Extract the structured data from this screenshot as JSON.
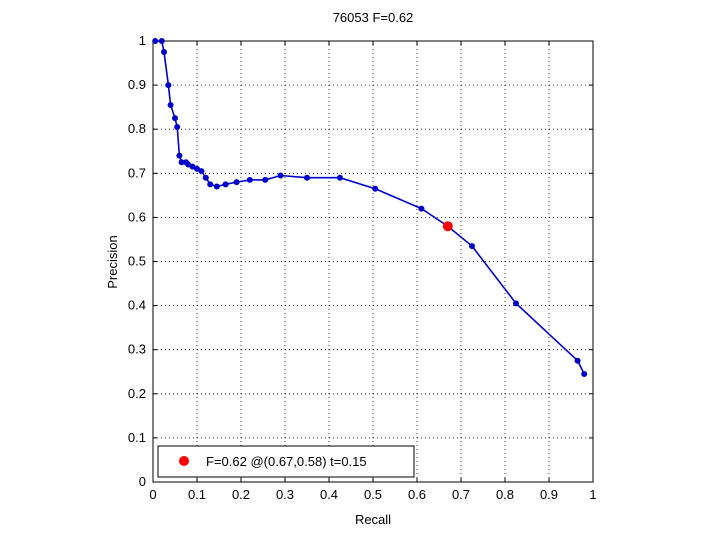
{
  "chart_data": {
    "type": "line",
    "title": "76053 F=0.62",
    "xlabel": "Recall",
    "ylabel": "Precision",
    "xlim": [
      0,
      1
    ],
    "ylim": [
      0,
      1
    ],
    "xticks": [
      "0",
      "0.1",
      "0.2",
      "0.3",
      "0.4",
      "0.5",
      "0.6",
      "0.7",
      "0.8",
      "0.9",
      "1"
    ],
    "yticks": [
      "0",
      "0.1",
      "0.2",
      "0.3",
      "0.4",
      "0.5",
      "0.6",
      "0.7",
      "0.8",
      "0.9",
      "1"
    ],
    "grid": true,
    "legend_position": "bottom-left",
    "series": [
      {
        "color": "#0000cc",
        "x": [
          0.005,
          0.02,
          0.025,
          0.035,
          0.04,
          0.05,
          0.055,
          0.06,
          0.065,
          0.075,
          0.08,
          0.09,
          0.1,
          0.11,
          0.12,
          0.13,
          0.145,
          0.165,
          0.19,
          0.22,
          0.255,
          0.29,
          0.35,
          0.425,
          0.505,
          0.61,
          0.67,
          0.725,
          0.825,
          0.965,
          0.98
        ],
        "y": [
          1.0,
          1.0,
          0.975,
          0.9,
          0.855,
          0.825,
          0.805,
          0.74,
          0.725,
          0.725,
          0.72,
          0.715,
          0.71,
          0.705,
          0.69,
          0.675,
          0.67,
          0.675,
          0.68,
          0.685,
          0.685,
          0.695,
          0.69,
          0.69,
          0.665,
          0.62,
          0.58,
          0.535,
          0.405,
          0.275,
          0.245
        ]
      }
    ],
    "highlight_point": {
      "x": 0.67,
      "y": 0.58,
      "color": "#ff0000",
      "label": "F=0.62 @(0.67,0.58) t=0.15"
    }
  }
}
